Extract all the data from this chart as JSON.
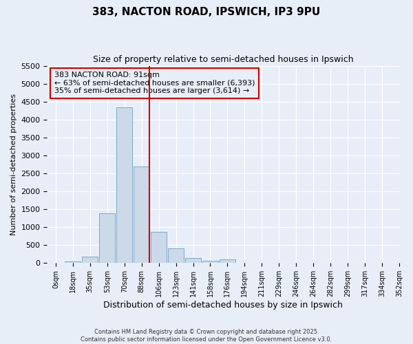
{
  "title": "383, NACTON ROAD, IPSWICH, IP3 9PU",
  "subtitle": "Size of property relative to semi-detached houses in Ipswich",
  "xlabel": "Distribution of semi-detached houses by size in Ipswich",
  "ylabel": "Number of semi-detached properties",
  "annotation_title": "383 NACTON ROAD: 91sqm",
  "annotation_line1": "← 63% of semi-detached houses are smaller (6,393)",
  "annotation_line2": "35% of semi-detached houses are larger (3,614) →",
  "footer_line1": "Contains HM Land Registry data © Crown copyright and database right 2025.",
  "footer_line2": "Contains public sector information licensed under the Open Government Licence v3.0.",
  "property_bin_index": 5,
  "bar_color": "#ccd9e8",
  "bar_edge_color": "#7aaac8",
  "vline_color": "#cc0000",
  "annotation_box_edge_color": "#cc0000",
  "background_color": "#e8eef8",
  "grid_color": "#ffffff",
  "ylim": [
    0,
    5500
  ],
  "yticks": [
    0,
    500,
    1000,
    1500,
    2000,
    2500,
    3000,
    3500,
    4000,
    4500,
    5000,
    5500
  ],
  "bin_labels": [
    "0sqm",
    "18sqm",
    "35sqm",
    "53sqm",
    "70sqm",
    "88sqm",
    "106sqm",
    "123sqm",
    "141sqm",
    "158sqm",
    "176sqm",
    "194sqm",
    "211sqm",
    "229sqm",
    "246sqm",
    "264sqm",
    "282sqm",
    "299sqm",
    "317sqm",
    "334sqm",
    "352sqm"
  ],
  "bar_heights": [
    15,
    50,
    175,
    1380,
    4350,
    2700,
    870,
    400,
    150,
    60,
    100,
    10,
    5,
    3,
    2,
    1,
    1,
    1,
    0,
    0
  ],
  "title_fontsize": 11,
  "subtitle_fontsize": 9,
  "xlabel_fontsize": 9,
  "ylabel_fontsize": 8,
  "tick_fontsize": 8,
  "xtick_fontsize": 7,
  "footer_fontsize": 6,
  "annotation_fontsize": 8
}
